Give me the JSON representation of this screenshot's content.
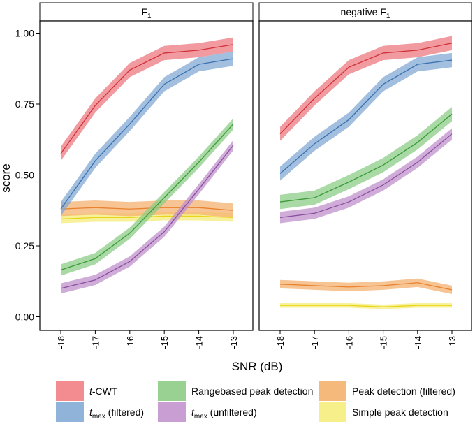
{
  "chart_data": {
    "type": "line",
    "ylabel": "score",
    "xlabel": "SNR (dB)",
    "x": [
      -18,
      -17,
      -16,
      -15,
      -14,
      -13
    ],
    "x_tick_labels": [
      "-18",
      "-17",
      "-16",
      "-15",
      "-14",
      "-13"
    ],
    "ylim": [
      0,
      1
    ],
    "y_ticks": [
      0,
      0.25,
      0.5,
      0.75,
      1.0
    ],
    "y_tick_labels": [
      "0.00",
      "0.25",
      "0.50",
      "0.75",
      "1.00"
    ],
    "legend_position": "bottom",
    "panels": [
      {
        "title_main": "F",
        "title_sub": "1",
        "series": [
          {
            "name": "t-CWT",
            "values": [
              0.575,
              0.745,
              0.87,
              0.93,
              0.94,
              0.96
            ],
            "band": 0.025
          },
          {
            "name": "t_max (filtered)",
            "values": [
              0.38,
              0.55,
              0.68,
              0.82,
              0.89,
              0.91
            ],
            "band": 0.025
          },
          {
            "name": "Rangebased peak detection",
            "values": [
              0.165,
              0.205,
              0.295,
              0.42,
              0.545,
              0.68
            ],
            "band": 0.02
          },
          {
            "name": "t_max (unfiltered)",
            "values": [
              0.1,
              0.13,
              0.195,
              0.3,
              0.45,
              0.605
            ],
            "band": 0.018
          },
          {
            "name": "Peak detection (filtered)",
            "values": [
              0.38,
              0.385,
              0.38,
              0.385,
              0.385,
              0.375
            ],
            "band": 0.025
          },
          {
            "name": "Simple peak detection",
            "values": [
              0.345,
              0.35,
              0.35,
              0.355,
              0.355,
              0.35
            ],
            "band": 0.015
          }
        ]
      },
      {
        "title_main": "negative  F",
        "title_sub": "1",
        "series": [
          {
            "name": "t-CWT",
            "values": [
              0.645,
              0.77,
              0.88,
              0.93,
              0.94,
              0.965
            ],
            "band": 0.025
          },
          {
            "name": "t_max (filtered)",
            "values": [
              0.505,
              0.61,
              0.695,
              0.82,
              0.89,
              0.905
            ],
            "band": 0.025
          },
          {
            "name": "Rangebased peak detection",
            "values": [
              0.405,
              0.42,
              0.475,
              0.535,
              0.615,
              0.715
            ],
            "band": 0.025
          },
          {
            "name": "t_max (unfiltered)",
            "values": [
              0.35,
              0.365,
              0.405,
              0.465,
              0.545,
              0.645
            ],
            "band": 0.02
          },
          {
            "name": "Peak detection (filtered)",
            "values": [
              0.115,
              0.11,
              0.105,
              0.11,
              0.12,
              0.095
            ],
            "band": 0.015
          },
          {
            "name": "Simple peak detection",
            "values": [
              0.04,
              0.04,
              0.04,
              0.035,
              0.04,
              0.04
            ],
            "band": 0.008
          }
        ]
      }
    ]
  },
  "legend": [
    {
      "prefix": "t",
      "main": "-CWT",
      "sub": "",
      "suffix": "",
      "italic_prefix": true
    },
    {
      "prefix": "t",
      "main": "",
      "sub": "max",
      "suffix": "  (filtered)",
      "italic_prefix": true
    },
    {
      "prefix": "",
      "main": "Rangebased peak detection",
      "sub": "",
      "suffix": "",
      "italic_prefix": false
    },
    {
      "prefix": "t",
      "main": "",
      "sub": "max",
      "suffix": " (unfiltered)",
      "italic_prefix": true
    },
    {
      "prefix": "",
      "main": "Peak detection (filtered)",
      "sub": "",
      "suffix": "",
      "italic_prefix": false
    },
    {
      "prefix": "",
      "main": "Simple peak detection",
      "sub": "",
      "suffix": "",
      "italic_prefix": false
    }
  ],
  "colors": {
    "series_line": [
      "#d0313a",
      "#3a72b0",
      "#3c9a3a",
      "#8a4fa0",
      "#e8822c",
      "#e8d41a"
    ],
    "series_band": [
      "#ec7a80",
      "#84aad4",
      "#8ccc86",
      "#c091cc",
      "#f4b070",
      "#f4ec7a"
    ],
    "legend_swatch": [
      "#f28c90",
      "#8fb3d9",
      "#98d192",
      "#c89ed3",
      "#f6b97c",
      "#f7f08a"
    ],
    "grid": "#000000"
  }
}
